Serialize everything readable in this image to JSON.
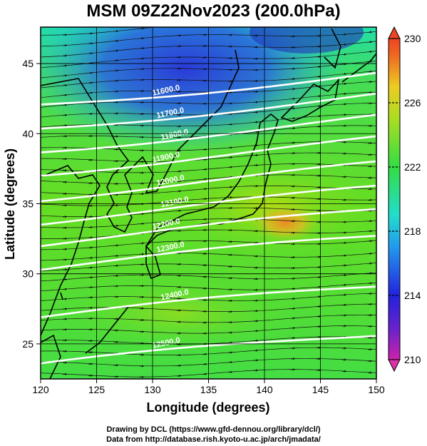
{
  "title": "MSM 09Z22Nov2023 (200.0hPa)",
  "credits": {
    "line1": "Drawing by DCL (https://www.gfd-dennou.org/library/dcl/)",
    "line2": "Data from http://database.rish.kyoto-u.ac.jp/arch/jmadata/"
  },
  "axes": {
    "xlabel": "Longitude (degrees)",
    "ylabel": "Latitude  (degrees)",
    "x_range": [
      120,
      150
    ],
    "y_range": [
      22.5,
      47.6
    ],
    "x_ticks": [
      120,
      125,
      130,
      135,
      140,
      145,
      150
    ],
    "y_ticks": [
      25,
      30,
      35,
      40,
      45
    ]
  },
  "colorbar": {
    "range": [
      210,
      230
    ],
    "tick_labels": [
      "230",
      "226",
      "222",
      "218",
      "214",
      "210"
    ]
  },
  "contours": [
    {
      "label": "11600.0",
      "lat": 43.2
    },
    {
      "label": "11700.0",
      "lat": 41.6
    },
    {
      "label": "11800.0",
      "lat": 40.0
    },
    {
      "label": "11900.0",
      "lat": 38.4
    },
    {
      "label": "12000.0",
      "lat": 36.6
    },
    {
      "label": "12100.0",
      "lat": 34.9
    },
    {
      "label": "12200.0",
      "lat": 33.3
    },
    {
      "label": "12300.0",
      "lat": 31.5
    },
    {
      "label": "12400.0",
      "lat": 28.0
    },
    {
      "label": "12500.0",
      "lat": 24.6
    }
  ],
  "map": {
    "feature": "coastline-east-asia-japan",
    "colors": {
      "cold": "#2233dd",
      "cool": "#22ccee",
      "mid": "#33dd33",
      "warm": "#ddcc22",
      "hot": "#ee8822"
    }
  }
}
